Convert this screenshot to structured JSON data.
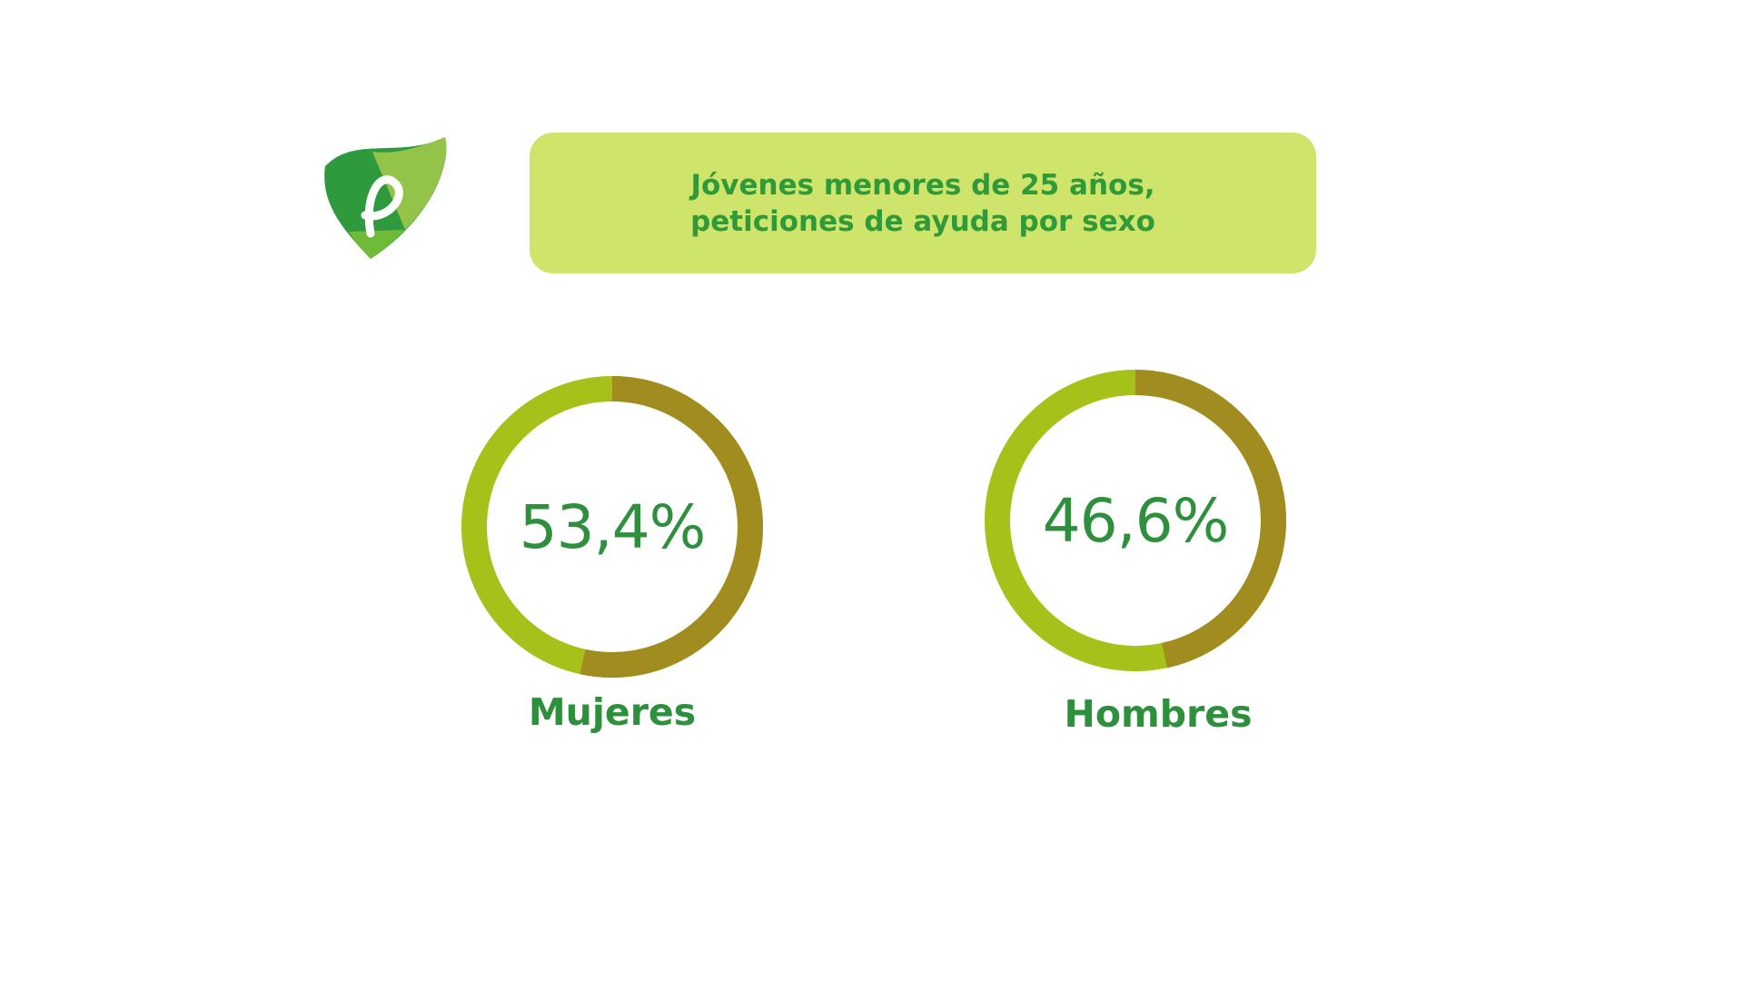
{
  "chart_data": {
    "type": "pie",
    "title_lines": [
      "Jóvenes menores de 25 años,",
      "peticiones de ayuda por sexo"
    ],
    "slices": [
      {
        "label": "Mujeres",
        "value": 53.4,
        "display": "53,4%"
      },
      {
        "label": "Hombres",
        "value": 46.6,
        "display": "46,6%"
      }
    ],
    "colors": {
      "ring_primary": "#a6c11a",
      "ring_secondary": "#a18c1f",
      "value_text": "#2e8f3c",
      "banner_bg": "#cfe46b",
      "banner_text": "#2e9a3a"
    },
    "grid": false,
    "legend": "none"
  },
  "logo": {
    "icon": "leaf-p-logo-icon"
  }
}
